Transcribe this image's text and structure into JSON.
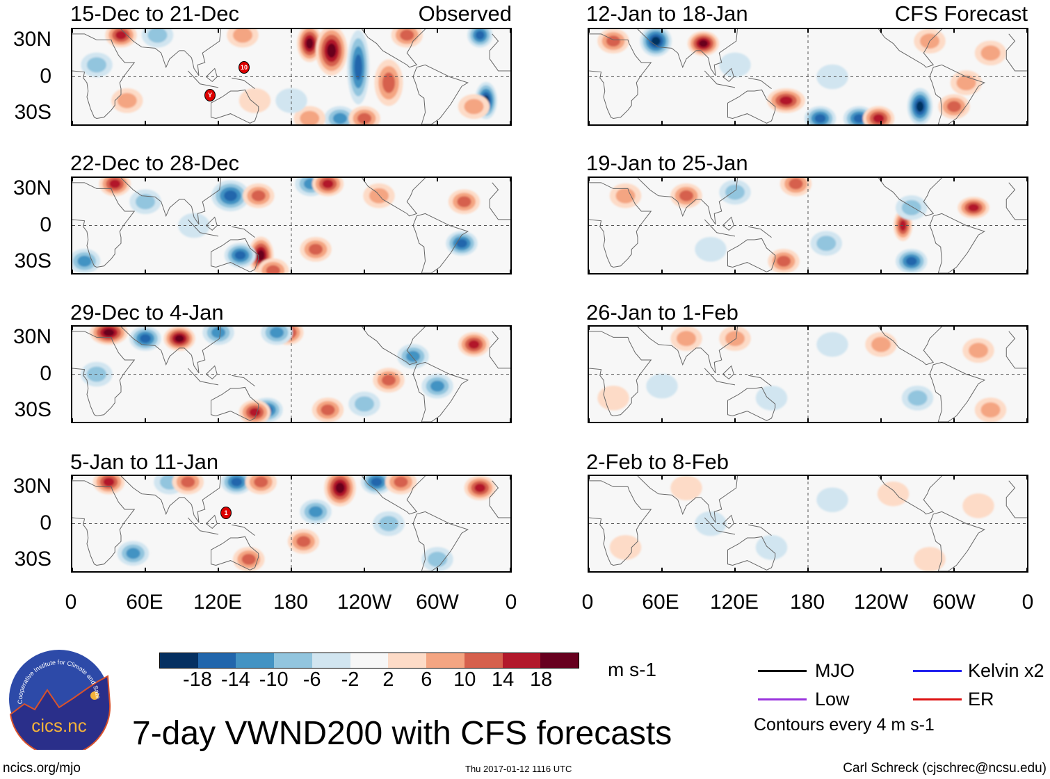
{
  "panels_observed": [
    {
      "title": "15-Dec to 21-Dec",
      "tag": "Observed",
      "storms": [
        "10",
        "Y"
      ]
    },
    {
      "title": "22-Dec to 28-Dec"
    },
    {
      "title": "29-Dec to 4-Jan"
    },
    {
      "title": "5-Jan to 11-Jan",
      "storms": [
        "1"
      ]
    }
  ],
  "panels_forecast": [
    {
      "title": "12-Jan to 18-Jan",
      "tag": "CFS Forecast"
    },
    {
      "title": "19-Jan to 25-Jan"
    },
    {
      "title": "26-Jan to 1-Feb"
    },
    {
      "title": "2-Feb to 8-Feb"
    }
  ],
  "lat_labels": [
    "30N",
    "0",
    "30S"
  ],
  "lon_labels": [
    "0",
    "60E",
    "120E",
    "180",
    "120W",
    "60W",
    "0"
  ],
  "colorbar": {
    "colors": [
      "#053061",
      "#2166ac",
      "#4393c3",
      "#92c5de",
      "#d1e5f0",
      "#f7f7f7",
      "#fddbc7",
      "#f4a582",
      "#d6604d",
      "#b2182b",
      "#67001f"
    ],
    "labels": [
      "-18",
      "-14",
      "-10",
      "-6",
      "-2",
      "2",
      "6",
      "10",
      "14",
      "18"
    ],
    "units": "m s-1"
  },
  "legend": {
    "items": [
      {
        "label": "MJO",
        "color": "#000000"
      },
      {
        "label": "Kelvin x2",
        "color": "#2222ee"
      },
      {
        "label": "Low",
        "color": "#9933dd"
      },
      {
        "label": "ER",
        "color": "#dd1111"
      }
    ],
    "contours": "Contours every 4 m s-1"
  },
  "title": "7-day VWND200 with CFS forecasts",
  "logo": {
    "text": "cics.nc",
    "ring": "Cooperative Institute for Climate and Satellites"
  },
  "footer": {
    "left": "ncics.org/mjo",
    "center": "Thu 2017-01-12 1116 UTC",
    "right": "Carl Schreck (cjschrec@ncsu.edu)"
  }
}
